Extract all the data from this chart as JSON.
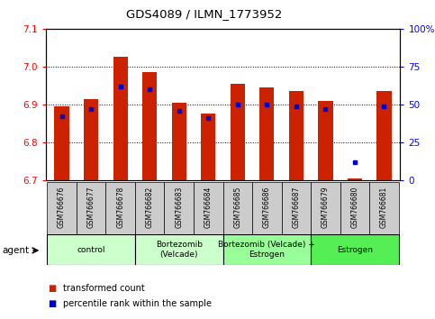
{
  "title": "GDS4089 / ILMN_1773952",
  "samples": [
    "GSM766676",
    "GSM766677",
    "GSM766678",
    "GSM766682",
    "GSM766683",
    "GSM766684",
    "GSM766685",
    "GSM766686",
    "GSM766687",
    "GSM766679",
    "GSM766680",
    "GSM766681"
  ],
  "red_values": [
    6.895,
    6.915,
    7.025,
    6.985,
    6.905,
    6.875,
    6.955,
    6.945,
    6.935,
    6.91,
    6.705,
    6.935
  ],
  "blue_pct": [
    42,
    47,
    62,
    60,
    46,
    41,
    50,
    50,
    49,
    47,
    12,
    49
  ],
  "ymin": 6.7,
  "ymax": 7.1,
  "yticks_left": [
    6.7,
    6.8,
    6.9,
    7.0,
    7.1
  ],
  "yticks_right_vals": [
    0,
    25,
    50,
    75,
    100
  ],
  "bar_color": "#CC2200",
  "dot_color": "#0000CC",
  "bar_width": 0.5,
  "groups": [
    {
      "label": "control",
      "start": 0,
      "end": 3,
      "color": "#CCFFCC"
    },
    {
      "label": "Bortezomib\n(Velcade)",
      "start": 3,
      "end": 6,
      "color": "#CCFFCC"
    },
    {
      "label": "Bortezomib (Velcade) +\nEstrogen",
      "start": 6,
      "end": 9,
      "color": "#99FF99"
    },
    {
      "label": "Estrogen",
      "start": 9,
      "end": 12,
      "color": "#55EE55"
    }
  ],
  "sample_box_color": "#CCCCCC",
  "legend_items": [
    {
      "color": "#CC2200",
      "label": "transformed count"
    },
    {
      "color": "#0000CC",
      "label": "percentile rank within the sample"
    }
  ]
}
